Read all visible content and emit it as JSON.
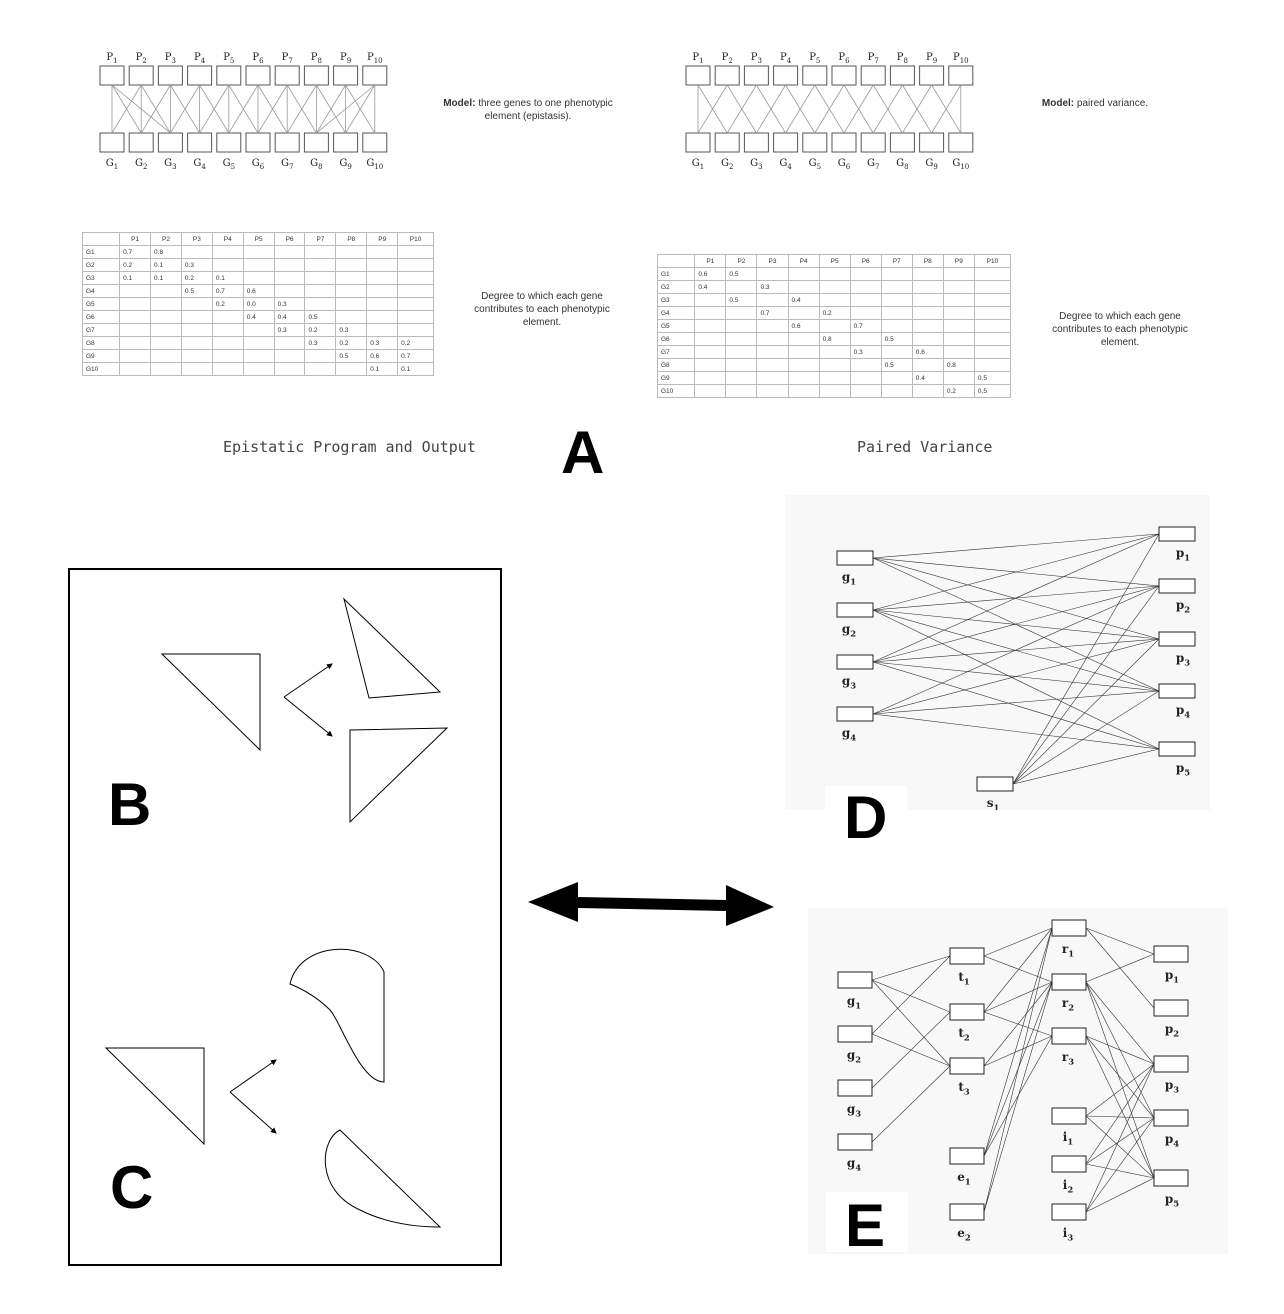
{
  "panel_a": {
    "letter": "A",
    "left": {
      "caption": "Epistatic Program and Output",
      "model_label": "Model:",
      "model_text": "three genes to one phenotypic element (epistasis).",
      "degree_text": "Degree to which each gene contributes to each phenotypic element.",
      "col_headers": [
        "P1",
        "P2",
        "P3",
        "P4",
        "P5",
        "P6",
        "P7",
        "P8",
        "P9",
        "P10"
      ],
      "rows": [
        {
          "gene": "G1",
          "values": [
            "0.7",
            "0.8",
            "",
            "",
            "",
            "",
            "",
            "",
            "",
            ""
          ]
        },
        {
          "gene": "G2",
          "values": [
            "0.2",
            "0.1",
            "0.3",
            "",
            "",
            "",
            "",
            "",
            "",
            ""
          ]
        },
        {
          "gene": "G3",
          "values": [
            "0.1",
            "0.1",
            "0.2",
            "0.1",
            "",
            "",
            "",
            "",
            "",
            ""
          ]
        },
        {
          "gene": "G4",
          "values": [
            "",
            "",
            "0.5",
            "0.7",
            "0.6",
            "",
            "",
            "",
            "",
            ""
          ]
        },
        {
          "gene": "G5",
          "values": [
            "",
            "",
            "",
            "0.2",
            "0.0",
            "0.3",
            "",
            "",
            "",
            ""
          ]
        },
        {
          "gene": "G6",
          "values": [
            "",
            "",
            "",
            "",
            "0.4",
            "0.4",
            "0.5",
            "",
            "",
            ""
          ]
        },
        {
          "gene": "G7",
          "values": [
            "",
            "",
            "",
            "",
            "",
            "0.3",
            "0.2",
            "0.3",
            "",
            ""
          ]
        },
        {
          "gene": "G8",
          "values": [
            "",
            "",
            "",
            "",
            "",
            "",
            "0.3",
            "0.2",
            "0.3",
            "0.2"
          ]
        },
        {
          "gene": "G9",
          "values": [
            "",
            "",
            "",
            "",
            "",
            "",
            "",
            "0.5",
            "0.6",
            "0.7"
          ]
        },
        {
          "gene": "G10",
          "values": [
            "",
            "",
            "",
            "",
            "",
            "",
            "",
            "",
            "0.1",
            "0.1"
          ]
        }
      ]
    },
    "right": {
      "caption": "Paired Variance",
      "model_label": "Model:",
      "model_text": "paired variance.",
      "degree_text": "Degree to which each gene contributes to each phenotypic element.",
      "col_headers": [
        "P1",
        "P2",
        "P3",
        "P4",
        "P5",
        "P6",
        "P7",
        "P8",
        "P9",
        "P10"
      ],
      "rows": [
        {
          "gene": "G1",
          "values": [
            "0.6",
            "0.5",
            "",
            "",
            "",
            "",
            "",
            "",
            "",
            ""
          ]
        },
        {
          "gene": "G2",
          "values": [
            "0.4",
            "",
            "0.3",
            "",
            "",
            "",
            "",
            "",
            "",
            ""
          ]
        },
        {
          "gene": "G3",
          "values": [
            "",
            "0.5",
            "",
            "0.4",
            "",
            "",
            "",
            "",
            "",
            ""
          ]
        },
        {
          "gene": "G4",
          "values": [
            "",
            "",
            "0.7",
            "",
            "0.2",
            "",
            "",
            "",
            "",
            ""
          ]
        },
        {
          "gene": "G5",
          "values": [
            "",
            "",
            "",
            "0.6",
            "",
            "0.7",
            "",
            "",
            "",
            ""
          ]
        },
        {
          "gene": "G6",
          "values": [
            "",
            "",
            "",
            "",
            "0.8",
            "",
            "0.5",
            "",
            "",
            ""
          ]
        },
        {
          "gene": "G7",
          "values": [
            "",
            "",
            "",
            "",
            "",
            "0.3",
            "",
            "0.6",
            "",
            ""
          ]
        },
        {
          "gene": "G8",
          "values": [
            "",
            "",
            "",
            "",
            "",
            "",
            "0.5",
            "",
            "0.8",
            ""
          ]
        },
        {
          "gene": "G9",
          "values": [
            "",
            "",
            "",
            "",
            "",
            "",
            "",
            "0.4",
            "",
            "0.5"
          ]
        },
        {
          "gene": "G10",
          "values": [
            "",
            "",
            "",
            "",
            "",
            "",
            "",
            "",
            "0.2",
            "0.5"
          ]
        }
      ]
    },
    "p_labels": [
      "P1",
      "P2",
      "P3",
      "P4",
      "P5",
      "P6",
      "P7",
      "P8",
      "P9",
      "P10"
    ],
    "g_labels": [
      "G1",
      "G2",
      "G3",
      "G4",
      "G5",
      "G6",
      "G7",
      "G8",
      "G9",
      "G10"
    ]
  },
  "panel_b": {
    "letter": "B"
  },
  "panel_c": {
    "letter": "C"
  },
  "panel_d": {
    "letter": "D",
    "genes": [
      "g1",
      "g2",
      "g3",
      "g4"
    ],
    "phenotypes": [
      "p1",
      "p2",
      "p3",
      "p4",
      "p5"
    ],
    "sources": [
      "s1"
    ]
  },
  "panel_e": {
    "letter": "E",
    "genes": [
      "g1",
      "g2",
      "g3",
      "g4"
    ],
    "t_nodes": [
      "t1",
      "t2",
      "t3"
    ],
    "r_nodes": [
      "r1",
      "r2",
      "r3"
    ],
    "e_nodes": [
      "e1",
      "e2"
    ],
    "i_nodes": [
      "i1",
      "i2",
      "i3"
    ],
    "phenotypes": [
      "p1",
      "p2",
      "p3",
      "p4",
      "p5"
    ]
  }
}
